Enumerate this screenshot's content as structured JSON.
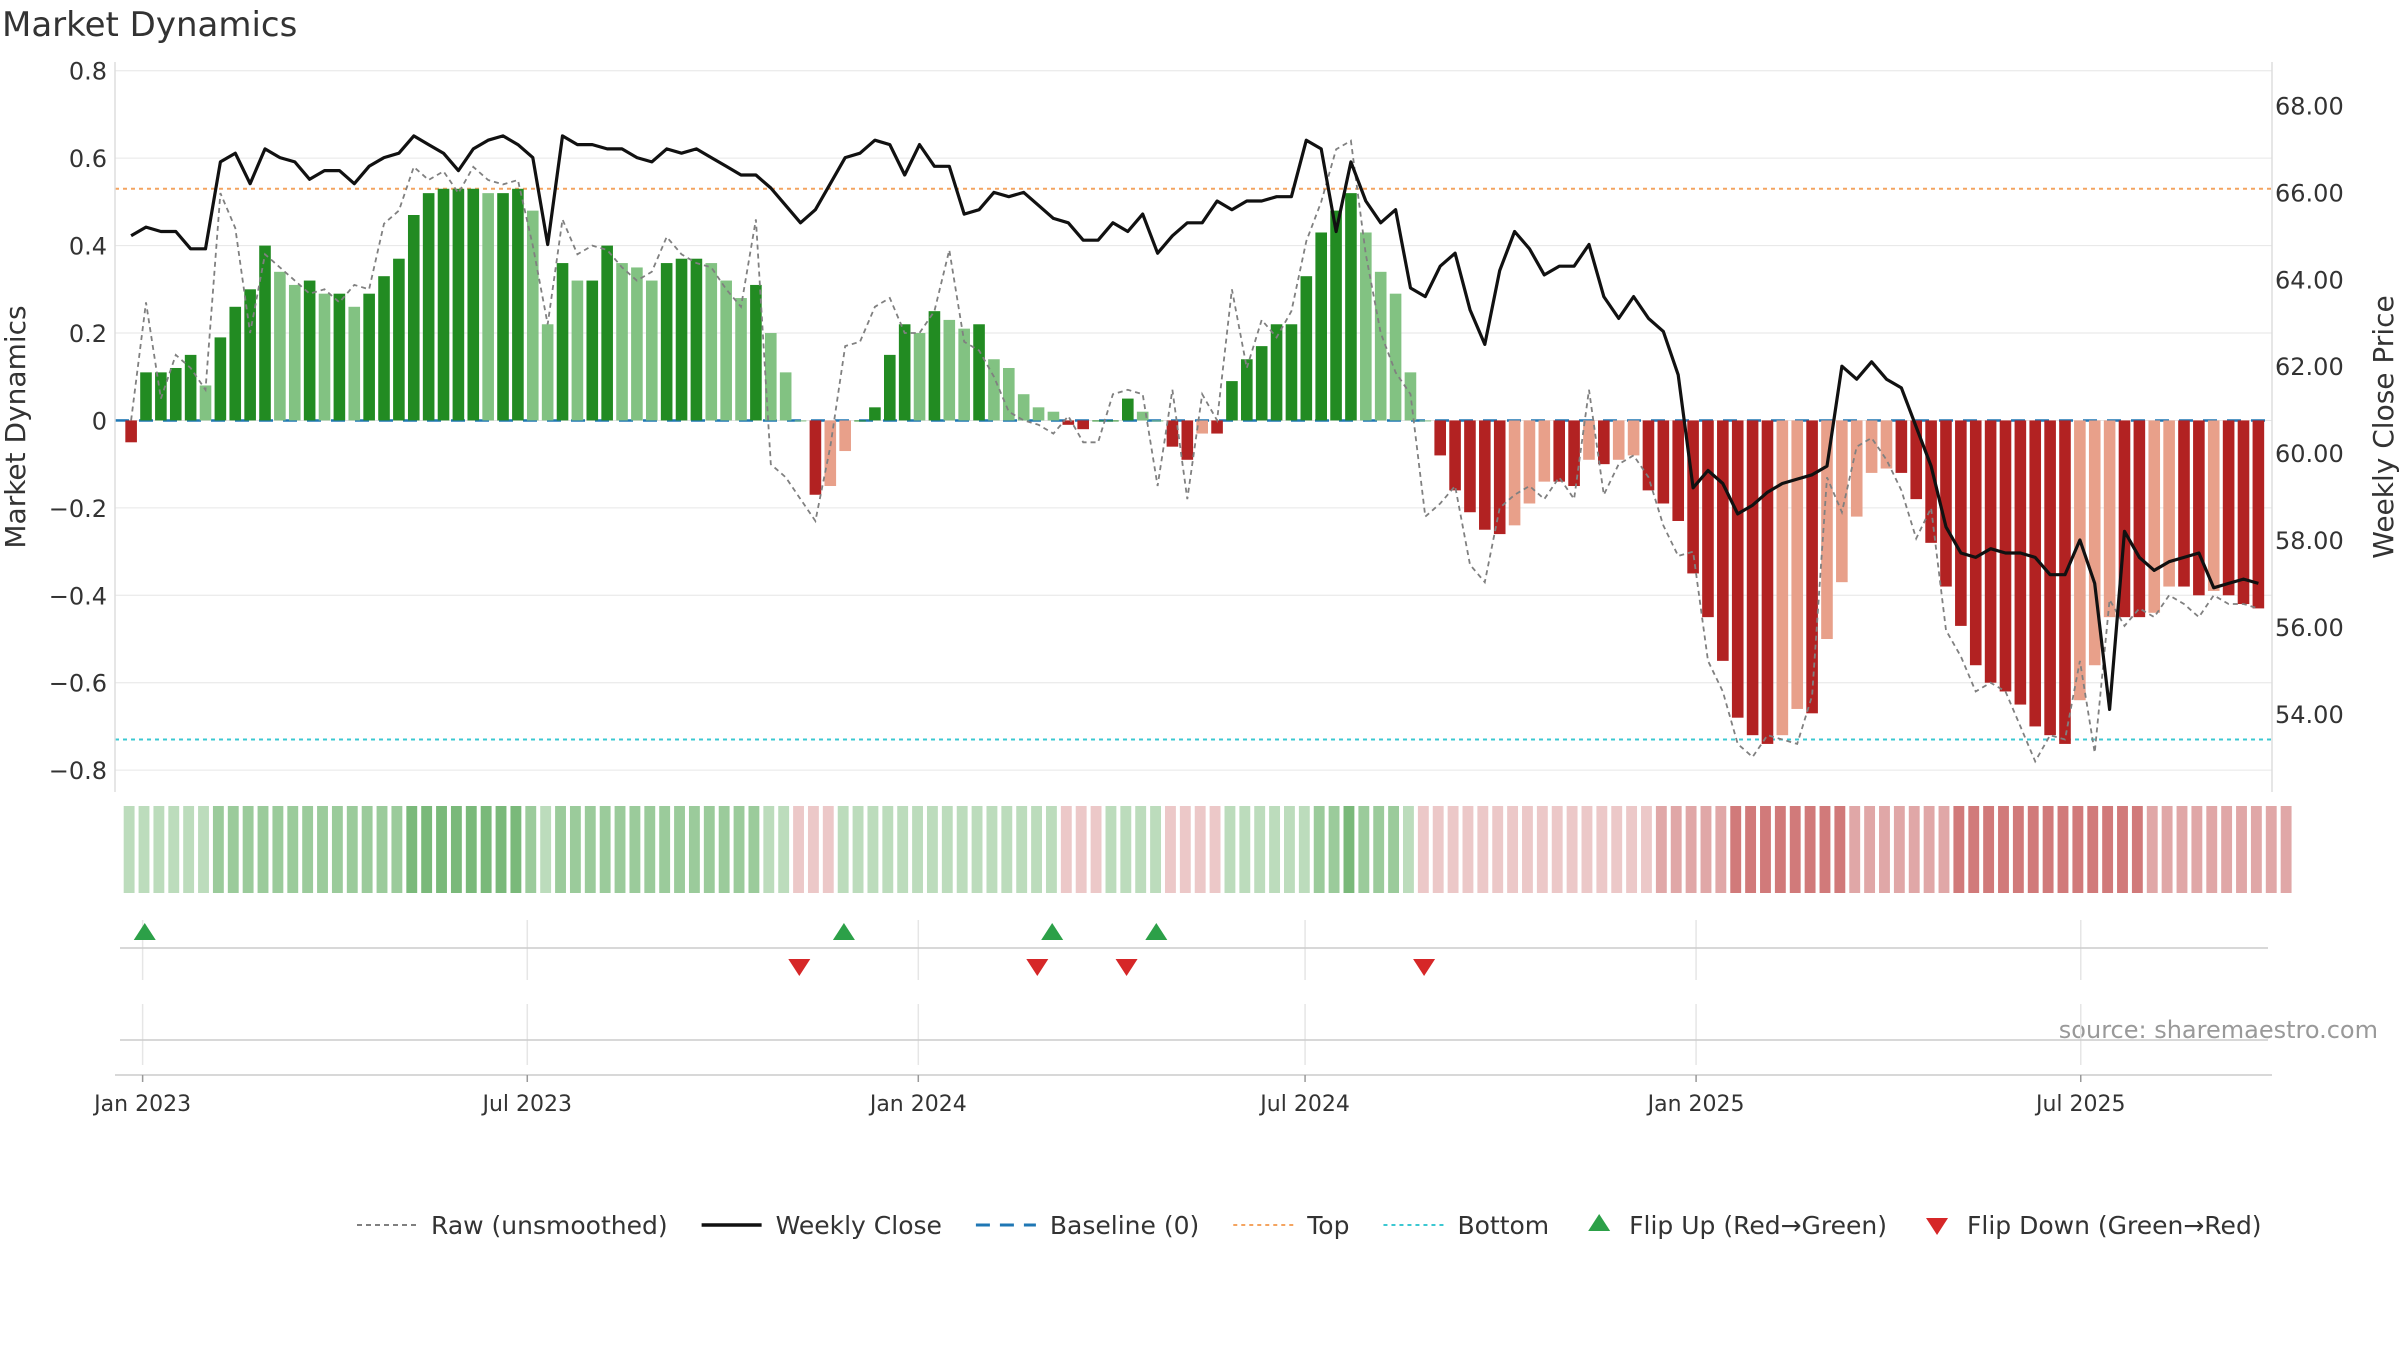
{
  "chart_data": {
    "type": "bar",
    "title": "Market Dynamics",
    "ylabel": "Market Dynamics",
    "y2label": "Weekly Close Price",
    "source": "source: sharemaestro.com",
    "ylim": [
      -0.85,
      0.82
    ],
    "y2lim": [
      52.2,
      69.0
    ],
    "yticks": [
      0.8,
      0.6,
      0.4,
      0.2,
      0,
      -0.2,
      -0.4,
      -0.6,
      -0.8
    ],
    "ytick_labels": [
      "0.8",
      "0.6",
      "0.4",
      "0.2",
      "0",
      "−0.2",
      "−0.4",
      "−0.6",
      "−0.8"
    ],
    "y2ticks": [
      68,
      66,
      64,
      62,
      60,
      58,
      56,
      54
    ],
    "y2tick_labels": [
      "68.00",
      "66.00",
      "64.00",
      "62.00",
      "60.00",
      "58.00",
      "56.00",
      "54.00"
    ],
    "x_start": "2022-12-19",
    "x_end": "2025-09-29",
    "xticks": [
      {
        "date": "2023-01-01",
        "label": "Jan 2023"
      },
      {
        "date": "2023-07-01",
        "label": "Jul 2023"
      },
      {
        "date": "2024-01-01",
        "label": "Jan 2024"
      },
      {
        "date": "2024-07-01",
        "label": "Jul 2024"
      },
      {
        "date": "2025-01-01",
        "label": "Jan 2025"
      },
      {
        "date": "2025-07-01",
        "label": "Jul 2025"
      }
    ],
    "reference_lines": {
      "top": 0.53,
      "bottom": -0.73,
      "baseline": 0
    },
    "grid": true,
    "legend_position": "bottom",
    "colors": {
      "green_strong": "#228b22",
      "green_weak": "#82c282",
      "red_strong": "#b22222",
      "red_weak": "#e8a08a",
      "close_line": "#111111",
      "raw_line": "#808080",
      "baseline": "#1f77b4",
      "top": "#f4a460",
      "bottom": "#3cc8d2",
      "flip_up": "#2ca048",
      "flip_down": "#d62728"
    },
    "legend": [
      {
        "key": "raw",
        "label": "Raw (unsmoothed)"
      },
      {
        "key": "close",
        "label": "Weekly Close"
      },
      {
        "key": "baseline",
        "label": "Baseline (0)"
      },
      {
        "key": "top",
        "label": "Top"
      },
      {
        "key": "bottom",
        "label": "Bottom"
      },
      {
        "key": "flip_up",
        "label": "Flip Up (Red→Green)"
      },
      {
        "key": "flip_down",
        "label": "Flip Down (Green→Red)"
      }
    ],
    "series": [
      {
        "key": "smoothed",
        "values": [
          -0.05,
          0.11,
          0.11,
          0.12,
          0.15,
          0.08,
          0.19,
          0.26,
          0.3,
          0.4,
          0.34,
          0.31,
          0.32,
          0.29,
          0.29,
          0.26,
          0.29,
          0.33,
          0.37,
          0.47,
          0.52,
          0.53,
          0.53,
          0.53,
          0.52,
          0.52,
          0.53,
          0.48,
          0.22,
          0.36,
          0.32,
          0.32,
          0.4,
          0.36,
          0.35,
          0.32,
          0.36,
          0.37,
          0.37,
          0.36,
          0.32,
          0.28,
          0.31,
          0.2,
          0.11,
          0.0,
          -0.17,
          -0.15,
          -0.07,
          0.0,
          0.03,
          0.15,
          0.22,
          0.2,
          0.25,
          0.23,
          0.21,
          0.22,
          0.14,
          0.12,
          0.06,
          0.03,
          0.02,
          -0.01,
          -0.02,
          0.0,
          0.0,
          0.05,
          0.02,
          0.0,
          -0.06,
          -0.09,
          -0.03,
          -0.03,
          0.09,
          0.14,
          0.17,
          0.22,
          0.22,
          0.33,
          0.43,
          0.48,
          0.52,
          0.43,
          0.34,
          0.29,
          0.11,
          0.0,
          -0.08,
          -0.16,
          -0.21,
          -0.25,
          -0.26,
          -0.24,
          -0.19,
          -0.14,
          -0.14,
          -0.15,
          -0.09,
          -0.1,
          -0.09,
          -0.08,
          -0.16,
          -0.19,
          -0.23,
          -0.35,
          -0.45,
          -0.55,
          -0.68,
          -0.72,
          -0.74,
          -0.72,
          -0.66,
          -0.67,
          -0.5,
          -0.37,
          -0.22,
          -0.12,
          -0.11,
          -0.12,
          -0.18,
          -0.28,
          -0.38,
          -0.47,
          -0.56,
          -0.6,
          -0.62,
          -0.65,
          -0.7,
          -0.72,
          -0.74,
          -0.64,
          -0.56,
          -0.45,
          -0.45,
          -0.45,
          -0.44,
          -0.38,
          -0.38,
          -0.4,
          -0.39,
          -0.4,
          -0.42,
          -0.43
        ]
      },
      {
        "key": "raw",
        "name": "Raw (unsmoothed)",
        "values": [
          0.0,
          0.27,
          0.05,
          0.15,
          0.12,
          0.07,
          0.52,
          0.44,
          0.2,
          0.38,
          0.35,
          0.32,
          0.29,
          0.3,
          0.27,
          0.31,
          0.3,
          0.45,
          0.48,
          0.58,
          0.55,
          0.57,
          0.52,
          0.58,
          0.55,
          0.54,
          0.55,
          0.4,
          0.22,
          0.46,
          0.38,
          0.4,
          0.39,
          0.35,
          0.32,
          0.34,
          0.42,
          0.38,
          0.36,
          0.35,
          0.3,
          0.26,
          0.46,
          -0.1,
          -0.13,
          -0.18,
          -0.23,
          -0.06,
          0.17,
          0.18,
          0.26,
          0.28,
          0.2,
          0.2,
          0.25,
          0.39,
          0.18,
          0.16,
          0.1,
          0.02,
          0.0,
          -0.01,
          -0.03,
          0.01,
          -0.05,
          -0.05,
          0.06,
          0.07,
          0.06,
          -0.15,
          0.07,
          -0.18,
          0.06,
          0.0,
          0.3,
          0.12,
          0.23,
          0.19,
          0.25,
          0.41,
          0.5,
          0.62,
          0.64,
          0.38,
          0.2,
          0.11,
          0.06,
          -0.22,
          -0.19,
          -0.15,
          -0.33,
          -0.37,
          -0.2,
          -0.17,
          -0.15,
          -0.18,
          -0.13,
          -0.18,
          0.07,
          -0.17,
          -0.1,
          -0.08,
          -0.13,
          -0.24,
          -0.31,
          -0.3,
          -0.55,
          -0.62,
          -0.74,
          -0.77,
          -0.72,
          -0.73,
          -0.74,
          -0.63,
          -0.13,
          -0.21,
          -0.06,
          -0.04,
          -0.09,
          -0.16,
          -0.27,
          -0.2,
          -0.48,
          -0.54,
          -0.62,
          -0.6,
          -0.62,
          -0.7,
          -0.78,
          -0.72,
          -0.73,
          -0.55,
          -0.76,
          -0.41,
          -0.47,
          -0.43,
          -0.45,
          -0.4,
          -0.42,
          -0.45,
          -0.4,
          -0.42,
          -0.42,
          -0.43
        ]
      },
      {
        "key": "close",
        "name": "Weekly Close",
        "values": [
          65.0,
          65.2,
          65.1,
          65.1,
          64.7,
          64.7,
          66.7,
          66.9,
          66.2,
          67.0,
          66.8,
          66.7,
          66.3,
          66.5,
          66.5,
          66.2,
          66.6,
          66.8,
          66.9,
          67.3,
          67.1,
          66.9,
          66.5,
          67.0,
          67.2,
          67.3,
          67.1,
          66.8,
          64.8,
          67.3,
          67.1,
          67.1,
          67.0,
          67.0,
          66.8,
          66.7,
          67.0,
          66.9,
          67.0,
          66.8,
          66.6,
          66.4,
          66.4,
          66.1,
          65.7,
          65.3,
          65.6,
          66.2,
          66.8,
          66.9,
          67.2,
          67.1,
          66.4,
          67.1,
          66.6,
          66.6,
          65.5,
          65.6,
          66.0,
          65.9,
          66.0,
          65.7,
          65.4,
          65.3,
          64.9,
          64.9,
          65.3,
          65.1,
          65.5,
          64.6,
          65.0,
          65.3,
          65.3,
          65.8,
          65.6,
          65.8,
          65.8,
          65.9,
          65.9,
          67.2,
          67.0,
          65.1,
          66.7,
          65.8,
          65.3,
          65.6,
          63.8,
          63.6,
          64.3,
          64.6,
          63.3,
          62.5,
          64.2,
          65.1,
          64.7,
          64.1,
          64.3,
          64.3,
          64.8,
          63.6,
          63.1,
          63.6,
          63.1,
          62.8,
          61.8,
          59.2,
          59.6,
          59.3,
          58.6,
          58.8,
          59.1,
          59.3,
          59.4,
          59.5,
          59.7,
          62.0,
          61.7,
          62.1,
          61.7,
          61.5,
          60.6,
          59.7,
          58.3,
          57.7,
          57.6,
          57.8,
          57.7,
          57.7,
          57.6,
          57.2,
          57.2,
          58.0,
          57.0,
          54.1,
          58.2,
          57.6,
          57.3,
          57.5,
          57.6,
          57.7,
          56.9,
          57.0,
          57.1,
          57.0
        ]
      }
    ],
    "color_strip": [
      1,
      1,
      1,
      1,
      1,
      1,
      2,
      2,
      2,
      2,
      2,
      2,
      2,
      2,
      2,
      2,
      2,
      2,
      2,
      3,
      3,
      3,
      3,
      3,
      3,
      3,
      3,
      2,
      1,
      2,
      2,
      2,
      2,
      2,
      2,
      2,
      2,
      2,
      2,
      2,
      2,
      2,
      2,
      1,
      1,
      -1,
      -1,
      -1,
      1,
      1,
      1,
      1,
      1,
      1,
      1,
      1,
      1,
      1,
      1,
      1,
      1,
      1,
      1,
      -1,
      -1,
      -1,
      1,
      1,
      1,
      1,
      -1,
      -1,
      -1,
      -1,
      1,
      1,
      1,
      1,
      1,
      1,
      2,
      2,
      3,
      2,
      2,
      2,
      1,
      -1,
      -1,
      -1,
      -1,
      -1,
      -1,
      -1,
      -1,
      -1,
      -1,
      -1,
      -1,
      -1,
      -1,
      -1,
      -1,
      -2,
      -2,
      -2,
      -2,
      -2,
      -3,
      -3,
      -3,
      -3,
      -3,
      -3,
      -3,
      -3,
      -2,
      -2,
      -2,
      -2,
      -2,
      -2,
      -2,
      -3,
      -3,
      -3,
      -3,
      -3,
      -3,
      -3,
      -3,
      -3,
      -3,
      -3,
      -3,
      -3,
      -2,
      -2,
      -2,
      -2,
      -2,
      -2,
      -2,
      -2,
      -2,
      -2
    ],
    "flips": {
      "up": [
        "2023-01-02",
        "2023-11-27",
        "2024-03-04",
        "2024-04-22"
      ],
      "down": [
        "2023-11-06",
        "2024-02-26",
        "2024-04-08",
        "2024-08-26"
      ]
    }
  }
}
